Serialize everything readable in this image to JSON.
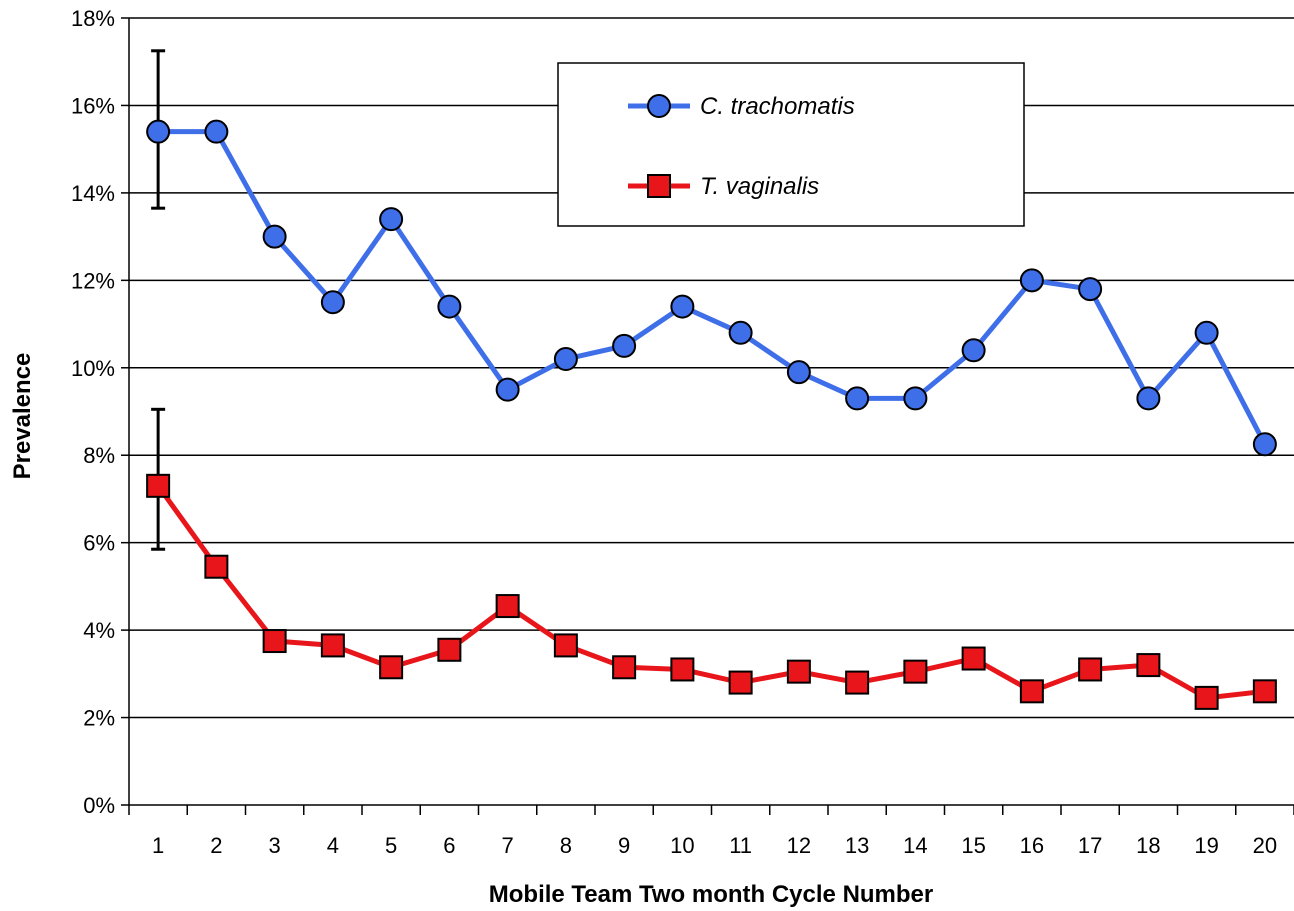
{
  "chart_data": {
    "type": "line",
    "title": "",
    "xlabel": "Mobile Team Two month Cycle Number",
    "ylabel": "Prevalence",
    "categories": [
      "1",
      "2",
      "3",
      "4",
      "5",
      "6",
      "7",
      "8",
      "9",
      "10",
      "11",
      "12",
      "13",
      "14",
      "15",
      "16",
      "17",
      "18",
      "19",
      "20"
    ],
    "ylim": [
      0,
      18
    ],
    "y_ticks": [
      "0%",
      "2%",
      "4%",
      "6%",
      "8%",
      "10%",
      "12%",
      "14%",
      "16%",
      "18%"
    ],
    "y_unit": "%",
    "grid": "horizontal",
    "legend_position": "top-center",
    "series": [
      {
        "name": "C. trachomatis",
        "marker": "circle",
        "color": "#3f6fe8",
        "values": [
          15.4,
          15.4,
          13.0,
          11.5,
          13.4,
          11.4,
          9.5,
          10.2,
          10.5,
          11.4,
          10.8,
          9.9,
          9.3,
          9.3,
          10.4,
          12.0,
          11.8,
          9.3,
          10.8,
          8.25
        ],
        "error_bars": [
          {
            "category": "1",
            "low": 13.65,
            "high": 17.25
          }
        ]
      },
      {
        "name": "T. vaginalis",
        "marker": "square",
        "color": "#e8161a",
        "values": [
          7.3,
          5.45,
          3.75,
          3.65,
          3.15,
          3.55,
          4.55,
          3.65,
          3.15,
          3.1,
          2.8,
          3.05,
          2.8,
          3.05,
          3.35,
          2.6,
          3.1,
          3.2,
          2.45,
          2.6
        ],
        "error_bars": [
          {
            "category": "1",
            "low": 5.85,
            "high": 9.05
          }
        ]
      }
    ]
  }
}
